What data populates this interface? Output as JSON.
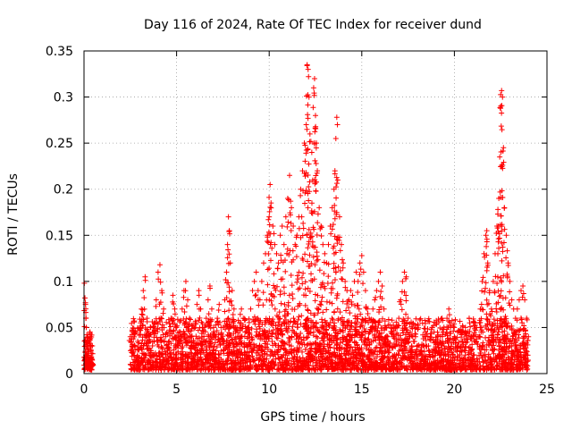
{
  "chart_data": {
    "type": "scatter",
    "title": "Day 116 of 2024, Rate Of TEC Index for receiver dund",
    "xlabel": "GPS time / hours",
    "ylabel": "ROTI / TECUs",
    "xlim": [
      0,
      25
    ],
    "ylim": [
      0,
      0.35
    ],
    "x_ticks": [
      0,
      5,
      10,
      15,
      20,
      25
    ],
    "y_ticks": [
      0,
      0.05,
      0.1,
      0.15,
      0.2,
      0.25,
      0.3,
      0.35
    ],
    "x_tick_labels": [
      "0",
      "5",
      "10",
      "15",
      "20",
      "25"
    ],
    "y_tick_labels": [
      "0",
      "0.05",
      "0.1",
      "0.15",
      "0.2",
      "0.25",
      "0.3",
      "0.35"
    ],
    "grid": true,
    "marker": "+",
    "color": "#ff0000",
    "series": [
      {
        "points": [
          [
            0.02,
            0.098
          ],
          [
            0.05,
            0.082
          ],
          [
            0.08,
            0.075
          ],
          [
            0.1,
            0.06
          ],
          [
            0.12,
            0.05
          ],
          [
            0.15,
            0.042
          ],
          [
            0.18,
            0.035
          ],
          [
            0.2,
            0.028
          ],
          [
            0.22,
            0.02
          ],
          [
            0.25,
            0.015
          ],
          [
            0.28,
            0.012
          ],
          [
            0.3,
            0.03
          ],
          [
            0.32,
            0.045
          ],
          [
            0.35,
            0.038
          ],
          [
            0.38,
            0.025
          ],
          [
            0.4,
            0.018
          ],
          [
            0.42,
            0.01
          ],
          [
            0.45,
            0.008
          ],
          [
            0.05,
            0.015
          ],
          [
            0.1,
            0.02
          ],
          [
            0.15,
            0.01
          ],
          [
            0.2,
            0.012
          ],
          [
            0.3,
            0.008
          ],
          [
            0.4,
            0.022
          ],
          [
            0.45,
            0.03
          ],
          [
            2.5,
            0.04
          ],
          [
            2.6,
            0.03
          ],
          [
            2.7,
            0.02
          ],
          [
            2.8,
            0.015
          ],
          [
            2.9,
            0.035
          ],
          [
            3.0,
            0.05
          ],
          [
            3.1,
            0.07
          ],
          [
            3.2,
            0.09
          ],
          [
            3.3,
            0.105
          ],
          [
            3.4,
            0.06
          ],
          [
            3.5,
            0.04
          ],
          [
            3.6,
            0.02
          ],
          [
            3.7,
            0.03
          ],
          [
            3.8,
            0.055
          ],
          [
            3.9,
            0.08
          ],
          [
            4.0,
            0.11
          ],
          [
            4.1,
            0.118
          ],
          [
            4.2,
            0.09
          ],
          [
            4.3,
            0.07
          ],
          [
            4.4,
            0.04
          ],
          [
            4.5,
            0.025
          ],
          [
            4.6,
            0.035
          ],
          [
            4.7,
            0.06
          ],
          [
            4.8,
            0.085
          ],
          [
            4.9,
            0.07
          ],
          [
            5.0,
            0.05
          ],
          [
            5.1,
            0.03
          ],
          [
            5.2,
            0.045
          ],
          [
            5.3,
            0.07
          ],
          [
            5.4,
            0.09
          ],
          [
            5.5,
            0.1
          ],
          [
            5.6,
            0.08
          ],
          [
            5.7,
            0.06
          ],
          [
            5.8,
            0.04
          ],
          [
            5.9,
            0.03
          ],
          [
            6.0,
            0.05
          ],
          [
            6.1,
            0.075
          ],
          [
            6.2,
            0.09
          ],
          [
            6.3,
            0.07
          ],
          [
            6.4,
            0.05
          ],
          [
            6.5,
            0.035
          ],
          [
            6.6,
            0.06
          ],
          [
            6.7,
            0.08
          ],
          [
            6.8,
            0.095
          ],
          [
            6.9,
            0.07
          ],
          [
            7.0,
            0.05
          ],
          [
            7.1,
            0.04
          ],
          [
            7.2,
            0.06
          ],
          [
            7.3,
            0.075
          ],
          [
            7.4,
            0.05
          ],
          [
            7.5,
            0.035
          ],
          [
            7.6,
            0.08
          ],
          [
            7.7,
            0.11
          ],
          [
            7.75,
            0.14
          ],
          [
            7.8,
            0.17
          ],
          [
            7.85,
            0.155
          ],
          [
            7.9,
            0.12
          ],
          [
            8.0,
            0.09
          ],
          [
            8.1,
            0.07
          ],
          [
            8.2,
            0.05
          ],
          [
            8.3,
            0.04
          ],
          [
            8.4,
            0.055
          ],
          [
            8.5,
            0.07
          ],
          [
            8.6,
            0.06
          ],
          [
            8.7,
            0.045
          ],
          [
            8.8,
            0.03
          ],
          [
            8.9,
            0.05
          ],
          [
            9.0,
            0.07
          ],
          [
            9.1,
            0.09
          ],
          [
            9.2,
            0.1
          ],
          [
            9.3,
            0.11
          ],
          [
            9.4,
            0.09
          ],
          [
            9.5,
            0.08
          ],
          [
            9.6,
            0.1
          ],
          [
            9.7,
            0.12
          ],
          [
            9.8,
            0.13
          ],
          [
            9.9,
            0.15
          ],
          [
            10.0,
            0.17
          ],
          [
            10.05,
            0.205
          ],
          [
            10.1,
            0.185
          ],
          [
            10.2,
            0.16
          ],
          [
            10.3,
            0.14
          ],
          [
            10.4,
            0.13
          ],
          [
            10.5,
            0.12
          ],
          [
            10.6,
            0.15
          ],
          [
            10.7,
            0.16
          ],
          [
            10.8,
            0.14
          ],
          [
            10.9,
            0.17
          ],
          [
            11.0,
            0.19
          ],
          [
            11.1,
            0.215
          ],
          [
            11.2,
            0.18
          ],
          [
            11.3,
            0.16
          ],
          [
            11.4,
            0.14
          ],
          [
            11.5,
            0.15
          ],
          [
            11.6,
            0.17
          ],
          [
            11.7,
            0.2
          ],
          [
            11.8,
            0.22
          ],
          [
            11.9,
            0.25
          ],
          [
            12.0,
            0.27
          ],
          [
            12.05,
            0.335
          ],
          [
            12.1,
            0.33
          ],
          [
            12.15,
            0.3
          ],
          [
            12.2,
            0.26
          ],
          [
            12.3,
            0.24
          ],
          [
            12.4,
            0.31
          ],
          [
            12.45,
            0.32
          ],
          [
            12.5,
            0.28
          ],
          [
            12.55,
            0.25
          ],
          [
            12.6,
            0.22
          ],
          [
            12.7,
            0.18
          ],
          [
            12.8,
            0.16
          ],
          [
            12.9,
            0.14
          ],
          [
            13.0,
            0.13
          ],
          [
            13.1,
            0.12
          ],
          [
            13.2,
            0.14
          ],
          [
            13.3,
            0.16
          ],
          [
            13.4,
            0.18
          ],
          [
            13.5,
            0.2
          ],
          [
            13.55,
            0.22
          ],
          [
            13.6,
            0.255
          ],
          [
            13.65,
            0.278
          ],
          [
            13.7,
            0.21
          ],
          [
            13.8,
            0.17
          ],
          [
            13.9,
            0.14
          ],
          [
            14.0,
            0.12
          ],
          [
            14.1,
            0.1
          ],
          [
            14.2,
            0.09
          ],
          [
            14.3,
            0.08
          ],
          [
            14.4,
            0.09
          ],
          [
            14.5,
            0.085
          ],
          [
            14.6,
            0.1
          ],
          [
            14.7,
            0.11
          ],
          [
            14.8,
            0.1
          ],
          [
            14.9,
            0.12
          ],
          [
            15.0,
            0.128
          ],
          [
            15.1,
            0.11
          ],
          [
            15.2,
            0.09
          ],
          [
            15.3,
            0.07
          ],
          [
            15.4,
            0.06
          ],
          [
            15.5,
            0.05
          ],
          [
            15.6,
            0.07
          ],
          [
            15.7,
            0.08
          ],
          [
            15.8,
            0.09
          ],
          [
            15.9,
            0.1
          ],
          [
            16.0,
            0.11
          ],
          [
            16.1,
            0.095
          ],
          [
            16.2,
            0.07
          ],
          [
            16.3,
            0.05
          ],
          [
            16.4,
            0.04
          ],
          [
            16.5,
            0.03
          ],
          [
            16.6,
            0.05
          ],
          [
            16.7,
            0.04
          ],
          [
            16.8,
            0.03
          ],
          [
            16.9,
            0.05
          ],
          [
            17.0,
            0.06
          ],
          [
            17.1,
            0.08
          ],
          [
            17.2,
            0.1
          ],
          [
            17.3,
            0.11
          ],
          [
            17.4,
            0.105
          ],
          [
            17.5,
            0.06
          ],
          [
            17.6,
            0.04
          ],
          [
            17.7,
            0.03
          ],
          [
            17.8,
            0.035
          ],
          [
            17.9,
            0.04
          ],
          [
            18.0,
            0.03
          ],
          [
            18.2,
            0.025
          ],
          [
            18.4,
            0.04
          ],
          [
            18.6,
            0.03
          ],
          [
            18.8,
            0.05
          ],
          [
            19.0,
            0.035
          ],
          [
            19.2,
            0.025
          ],
          [
            19.4,
            0.045
          ],
          [
            19.6,
            0.06
          ],
          [
            19.7,
            0.07
          ],
          [
            19.8,
            0.05
          ],
          [
            20.0,
            0.04
          ],
          [
            20.2,
            0.03
          ],
          [
            20.4,
            0.045
          ],
          [
            20.6,
            0.05
          ],
          [
            20.8,
            0.06
          ],
          [
            21.0,
            0.04
          ],
          [
            21.2,
            0.05
          ],
          [
            21.4,
            0.07
          ],
          [
            21.5,
            0.1
          ],
          [
            21.6,
            0.13
          ],
          [
            21.7,
            0.15
          ],
          [
            21.75,
            0.155
          ],
          [
            21.8,
            0.12
          ],
          [
            21.9,
            0.09
          ],
          [
            22.0,
            0.07
          ],
          [
            22.1,
            0.1
          ],
          [
            22.2,
            0.13
          ],
          [
            22.3,
            0.16
          ],
          [
            22.35,
            0.178
          ],
          [
            22.4,
            0.19
          ],
          [
            22.45,
            0.235
          ],
          [
            22.5,
            0.29
          ],
          [
            22.55,
            0.307
          ],
          [
            22.6,
            0.3
          ],
          [
            22.65,
            0.245
          ],
          [
            22.7,
            0.18
          ],
          [
            22.8,
            0.15
          ],
          [
            22.9,
            0.12
          ],
          [
            23.0,
            0.1
          ],
          [
            23.1,
            0.08
          ],
          [
            23.2,
            0.07
          ],
          [
            23.3,
            0.06
          ],
          [
            23.4,
            0.07
          ],
          [
            23.5,
            0.08
          ],
          [
            23.6,
            0.09
          ],
          [
            23.7,
            0.095
          ],
          [
            23.8,
            0.08
          ],
          [
            23.9,
            0.06
          ],
          [
            24.0,
            0.04
          ]
        ],
        "baseline_band": {
          "from": 2.5,
          "to": 24.0,
          "min": 0.004,
          "max": 0.06
        },
        "early_band": {
          "from": 0.0,
          "to": 0.45,
          "min": 0.004,
          "max": 0.045
        }
      }
    ]
  }
}
